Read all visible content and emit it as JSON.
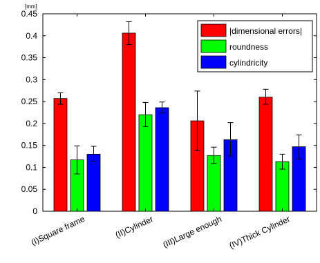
{
  "chart_data": {
    "type": "bar",
    "title": "",
    "xlabel": "",
    "ylabel": "",
    "y_unit": "[mm]",
    "categories": [
      "(I)Square frame",
      "(II)Cylinder",
      "(III)Large enough",
      "(IV)Thick Cylinder"
    ],
    "ylim": [
      0,
      0.45
    ],
    "yticks": [
      0,
      0.05,
      0.1,
      0.15,
      0.2,
      0.25,
      0.3,
      0.35,
      0.4,
      0.45
    ],
    "ytick_labels": [
      "0",
      "0.05",
      "0.1",
      "0.15",
      "0.2",
      "0.25",
      "0.3",
      "0.35",
      "0.4",
      "0.45"
    ],
    "legend_position": "top-right",
    "grid": false,
    "series": [
      {
        "name": "|dimensional errors|",
        "color": "#ff0000",
        "values": [
          0.257,
          0.406,
          0.206,
          0.26
        ],
        "error_low": [
          0.244,
          0.38,
          0.138,
          0.244
        ],
        "error_high": [
          0.27,
          0.432,
          0.274,
          0.278
        ]
      },
      {
        "name": "roundness",
        "color": "#00ff00",
        "values": [
          0.117,
          0.22,
          0.127,
          0.113
        ],
        "error_low": [
          0.085,
          0.193,
          0.109,
          0.096
        ],
        "error_high": [
          0.149,
          0.248,
          0.146,
          0.13
        ]
      },
      {
        "name": "cylindricity",
        "color": "#0000ff",
        "values": [
          0.13,
          0.236,
          0.163,
          0.147
        ],
        "error_low": [
          0.114,
          0.224,
          0.126,
          0.119
        ],
        "error_high": [
          0.148,
          0.249,
          0.202,
          0.174
        ]
      }
    ]
  }
}
